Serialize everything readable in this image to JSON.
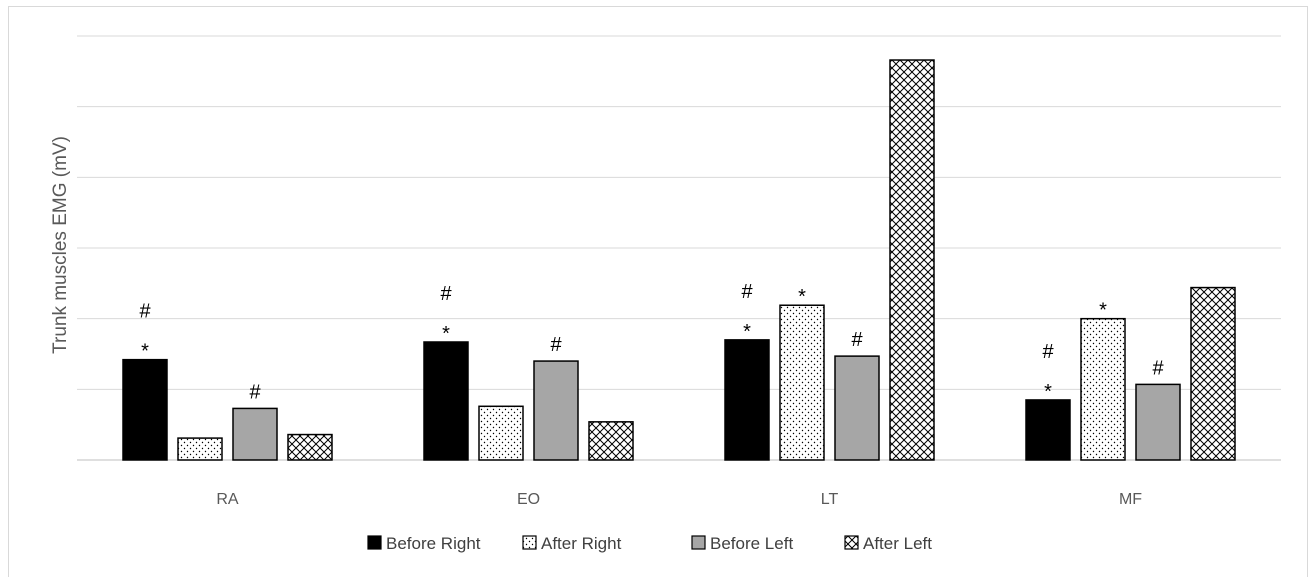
{
  "chart_data": {
    "type": "bar",
    "title": "",
    "xlabel": "",
    "ylabel": "Trunk muscles EMG (mV)",
    "ylim": [
      0,
      6
    ],
    "yticks_labeled": false,
    "grid": true,
    "legend_position": "bottom",
    "categories": [
      "RA",
      "EO",
      "LT",
      "MF"
    ],
    "series": [
      {
        "name": "Before Right",
        "fill": "#000000",
        "pattern": "solid",
        "values": [
          1.42,
          1.67,
          1.7,
          0.85
        ]
      },
      {
        "name": "After Right",
        "fill": "#ffffff",
        "pattern": "dots",
        "values": [
          0.31,
          0.76,
          2.19,
          2.0
        ]
      },
      {
        "name": "Before Left",
        "fill": "#a6a6a6",
        "pattern": "solid",
        "values": [
          0.73,
          1.4,
          1.47,
          1.07
        ]
      },
      {
        "name": "After Left",
        "fill": "#ffffff",
        "pattern": "crosshatch",
        "values": [
          0.36,
          0.54,
          5.66,
          2.44
        ]
      }
    ],
    "annotations": [
      {
        "category": "RA",
        "series": "Before Right",
        "markers": [
          "#",
          "*"
        ]
      },
      {
        "category": "RA",
        "series": "Before Left",
        "markers": [
          "#"
        ]
      },
      {
        "category": "EO",
        "series": "Before Right",
        "markers": [
          "#",
          "*"
        ]
      },
      {
        "category": "EO",
        "series": "Before Left",
        "markers": [
          "#"
        ]
      },
      {
        "category": "LT",
        "series": "Before Right",
        "markers": [
          "#",
          "*"
        ]
      },
      {
        "category": "LT",
        "series": "After Right",
        "markers": [
          "*"
        ]
      },
      {
        "category": "LT",
        "series": "Before Left",
        "markers": [
          "#"
        ]
      },
      {
        "category": "MF",
        "series": "Before Right",
        "markers": [
          "#",
          "*"
        ]
      },
      {
        "category": "MF",
        "series": "After Right",
        "markers": [
          "*"
        ]
      },
      {
        "category": "MF",
        "series": "Before Left",
        "markers": [
          "#"
        ]
      }
    ]
  }
}
